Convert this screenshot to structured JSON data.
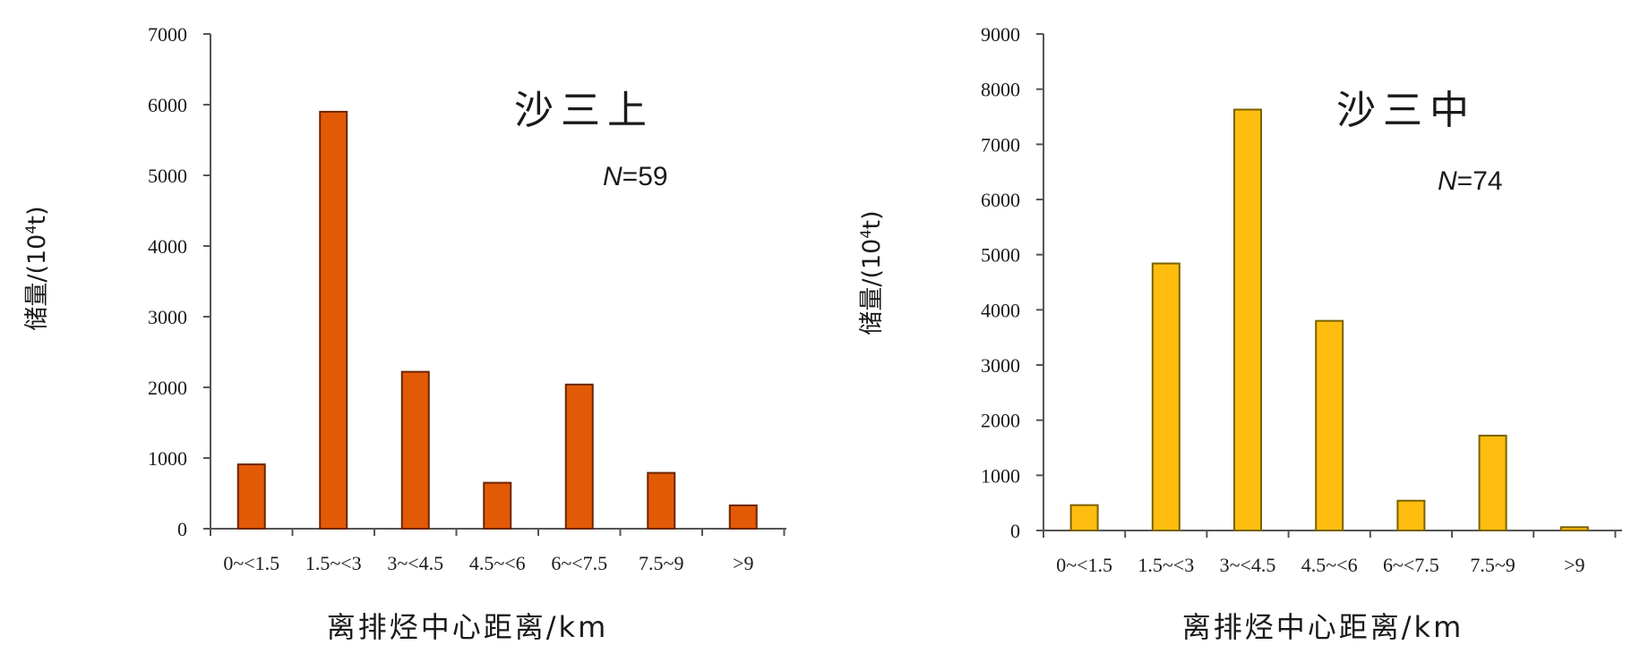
{
  "chart_data": [
    {
      "type": "bar",
      "title": "沙三上",
      "annotation": {
        "symbol": "N",
        "value": "=59"
      },
      "xlabel": "离排烃中心距离/km",
      "ylabel": {
        "main": "储量/(10",
        "sup": "4",
        "end": "t)"
      },
      "categories": [
        "0~<1.5",
        "1.5~<3",
        "3~<4.5",
        "4.5~<6",
        "6~<7.5",
        "7.5~9",
        ">9"
      ],
      "values": [
        910,
        5900,
        2220,
        650,
        2040,
        790,
        330
      ],
      "ylim": [
        0,
        7000
      ],
      "yticks": [
        0,
        1000,
        2000,
        3000,
        4000,
        5000,
        6000,
        7000
      ],
      "bar_color": "#E35A06",
      "bar_edge_color": "#6B2500",
      "grid": false,
      "legend": "none"
    },
    {
      "type": "bar",
      "title": "沙三中",
      "annotation": {
        "symbol": "N",
        "value": "=74"
      },
      "xlabel": "离排烃中心距离/km",
      "ylabel": {
        "main": "储量/(10",
        "sup": "4",
        "end": "t)"
      },
      "categories": [
        "0~<1.5",
        "1.5~<3",
        "3~<4.5",
        "4.5~<6",
        "6~<7.5",
        "7.5~9",
        ">9"
      ],
      "values": [
        460,
        4840,
        7630,
        3800,
        540,
        1720,
        60
      ],
      "ylim": [
        0,
        9000
      ],
      "yticks": [
        0,
        1000,
        2000,
        3000,
        4000,
        5000,
        6000,
        7000,
        8000,
        9000
      ],
      "bar_color": "#FFBE0F",
      "bar_edge_color": "#7A6200",
      "grid": false,
      "legend": "none"
    }
  ]
}
